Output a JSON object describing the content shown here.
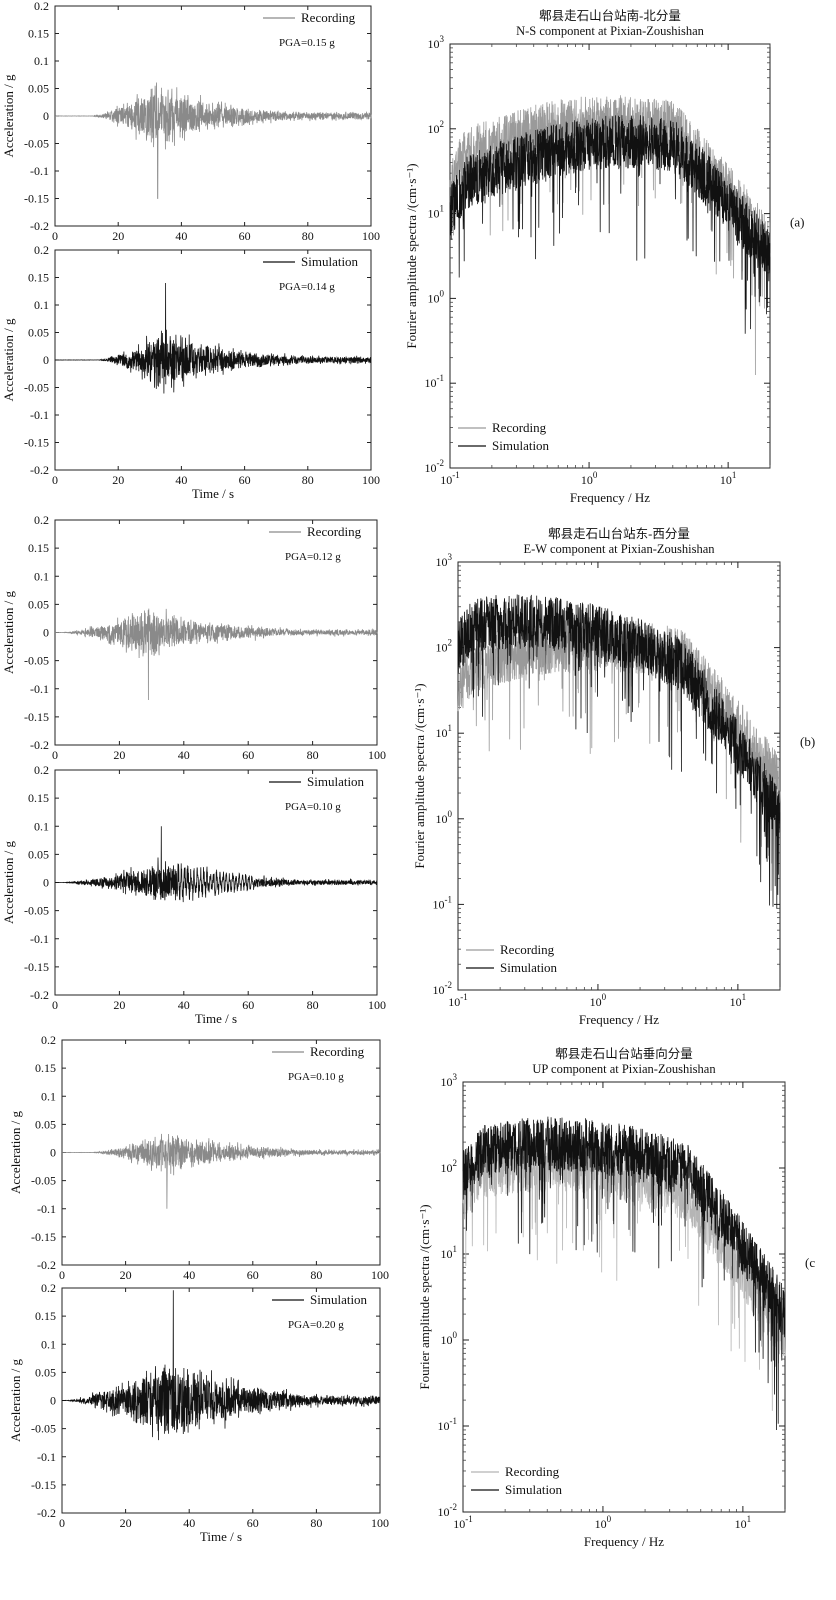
{
  "chart_data": [
    {
      "id": "a-ns-rec",
      "type": "line",
      "panel_letter": "",
      "xlim": [
        0,
        100
      ],
      "ylim": [
        -0.2,
        0.2
      ],
      "xticks": [
        "0",
        "20",
        "40",
        "60",
        "80",
        "100"
      ],
      "yticks": [
        "-0.2",
        "-0.15",
        "-0.1",
        "-0.05",
        "0",
        "0.05",
        "0.1",
        "0.15",
        "0.2"
      ],
      "xlabel": "",
      "ylabel": "Acceleration / g",
      "series": [
        {
          "name": "Recording",
          "color": "#8a8a8a",
          "pga": 0.15,
          "pga_label": "PGA=0.15 g",
          "onset": 12,
          "peak_time": 32.5
        }
      ]
    },
    {
      "id": "a-ns-sim",
      "type": "line",
      "xlim": [
        0,
        100
      ],
      "ylim": [
        -0.2,
        0.2
      ],
      "xticks": [
        "0",
        "20",
        "40",
        "60",
        "80",
        "100"
      ],
      "yticks": [
        "-0.2",
        "-0.15",
        "-0.1",
        "-0.05",
        "0",
        "0.05",
        "0.1",
        "0.15",
        "0.2"
      ],
      "xlabel": "Time / s",
      "ylabel": "Acceleration / g",
      "series": [
        {
          "name": "Simulation",
          "color": "#111111",
          "pga": 0.14,
          "pga_label": "PGA=0.14 g",
          "onset": 14,
          "peak_time": 35
        }
      ]
    },
    {
      "id": "a-ns-fas",
      "type": "line",
      "log_x": true,
      "log_y": true,
      "xlim": [
        0.1,
        20
      ],
      "ylim": [
        0.01,
        1000
      ],
      "title": [
        "郫县走石山台站南-北分量",
        "N-S component at Pixian-Zoushishan"
      ],
      "xlabel": "Frequency / Hz",
      "ylabel": "Fourier amplitude spectra /(cm·s⁻¹)",
      "legend_position": "bottom-left",
      "panel_letter": "(a)",
      "series": [
        {
          "name": "Recording",
          "color": "#9a9a9a",
          "peak_freq": 1.5,
          "peak_amp": 120
        },
        {
          "name": "Simulation",
          "color": "#111111",
          "peak_freq": 2.0,
          "peak_amp": 70
        }
      ]
    },
    {
      "id": "b-ew-rec",
      "type": "line",
      "xlim": [
        0,
        100
      ],
      "ylim": [
        -0.2,
        0.2
      ],
      "xticks": [
        "0",
        "20",
        "40",
        "60",
        "80",
        "100"
      ],
      "yticks": [
        "-0.2",
        "-0.15",
        "-0.1",
        "-0.05",
        "0",
        "0.05",
        "0.1",
        "0.15",
        "0.2"
      ],
      "xlabel": "",
      "ylabel": "Acceleration / g",
      "series": [
        {
          "name": "Recording",
          "color": "#8a8a8a",
          "pga": 0.12,
          "pga_label": "PGA=0.12 g",
          "onset": 3,
          "peak_time": 29
        }
      ]
    },
    {
      "id": "b-ew-sim",
      "type": "line",
      "xlim": [
        0,
        100
      ],
      "ylim": [
        -0.2,
        0.2
      ],
      "xticks": [
        "0",
        "20",
        "40",
        "60",
        "80",
        "100"
      ],
      "yticks": [
        "-0.2",
        "-0.15",
        "-0.1",
        "-0.05",
        "0",
        "0.05",
        "0.1",
        "0.15",
        "0.2"
      ],
      "xlabel": "Time / s",
      "ylabel": "Acceleration / g",
      "series": [
        {
          "name": "Simulation",
          "color": "#111111",
          "pga": 0.1,
          "pga_label": "PGA=0.10 g",
          "onset": 3,
          "peak_time": 33
        }
      ]
    },
    {
      "id": "b-ew-fas",
      "type": "line",
      "log_x": true,
      "log_y": true,
      "xlim": [
        0.1,
        20
      ],
      "ylim": [
        0.01,
        1000
      ],
      "title": [
        "郫县走石山台站东-西分量",
        "E-W component at Pixian-Zoushishan"
      ],
      "xlabel": "Frequency / Hz",
      "ylabel": "Fourier amplitude spectra /(cm·s⁻¹)",
      "legend_position": "bottom-left",
      "panel_letter": "(b)",
      "series": [
        {
          "name": "Recording",
          "color": "#9a9a9a",
          "peak_freq": 0.9,
          "peak_amp": 110
        },
        {
          "name": "Simulation",
          "color": "#111111",
          "peak_freq": 0.25,
          "peak_amp": 200
        }
      ]
    },
    {
      "id": "c-up-rec",
      "type": "line",
      "xlim": [
        0,
        100
      ],
      "ylim": [
        -0.2,
        0.2
      ],
      "xticks": [
        "0",
        "20",
        "40",
        "60",
        "80",
        "100"
      ],
      "yticks": [
        "-0.2",
        "-0.15",
        "-0.1",
        "-0.05",
        "0",
        "0.05",
        "0.1",
        "0.15",
        "0.2"
      ],
      "xlabel": "",
      "ylabel": "Acceleration / g",
      "series": [
        {
          "name": "Recording",
          "color": "#8a8a8a",
          "pga": 0.1,
          "pga_label": "PGA=0.10 g",
          "onset": 10,
          "peak_time": 33
        }
      ]
    },
    {
      "id": "c-up-sim",
      "type": "line",
      "xlim": [
        0,
        100
      ],
      "ylim": [
        -0.2,
        0.2
      ],
      "xticks": [
        "0",
        "20",
        "40",
        "60",
        "80",
        "100"
      ],
      "yticks": [
        "-0.2",
        "-0.15",
        "-0.1",
        "-0.05",
        "0",
        "0.05",
        "0.1",
        "0.15",
        "0.2"
      ],
      "xlabel": "Time / s",
      "ylabel": "Acceleration / g",
      "series": [
        {
          "name": "Simulation",
          "color": "#111111",
          "pga": 0.2,
          "pga_label": "PGA=0.20 g",
          "onset": 2,
          "peak_time": 35
        }
      ]
    },
    {
      "id": "c-up-fas",
      "type": "line",
      "log_x": true,
      "log_y": true,
      "xlim": [
        0.1,
        20
      ],
      "ylim": [
        0.01,
        1000
      ],
      "title": [
        "郫县走石山台站垂向分量",
        "UP component at Pixian-Zoushishan"
      ],
      "xlabel": "Frequency / Hz",
      "ylabel": "Fourier amplitude spectra /(cm·s⁻¹)",
      "legend_position": "bottom-left",
      "panel_letter": "(c",
      "series": [
        {
          "name": "Recording",
          "color": "#b5b5b5",
          "peak_freq": 0.4,
          "peak_amp": 110
        },
        {
          "name": "Simulation",
          "color": "#111111",
          "peak_freq": 0.45,
          "peak_amp": 190
        }
      ]
    }
  ]
}
